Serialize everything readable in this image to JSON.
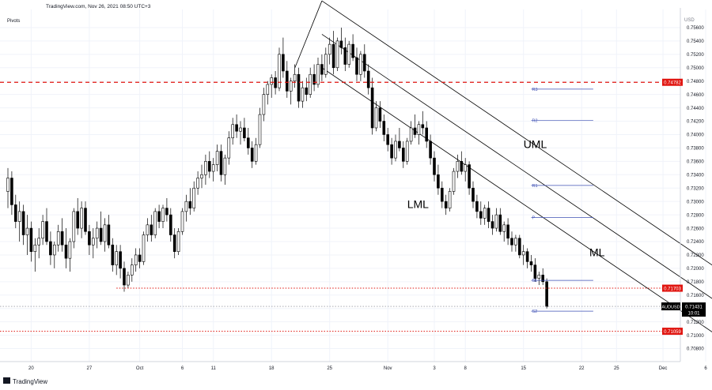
{
  "header": {
    "source_line": "TradingView.com, Nov 26, 2021 08:50 UTC+3",
    "indicator_label": "Pivots",
    "currency_label": "USD"
  },
  "footer": {
    "logo_text": "TradingView"
  },
  "colors": {
    "up_candle": "#ffffff",
    "down_candle": "#000000",
    "candle_outline": "#000000",
    "hline_red": "#e0140f",
    "pivot_line": "#3f51b5",
    "channel_line": "#000000",
    "current_price_line": "#787b86",
    "current_price_bg": "#000000",
    "price_tag_bg": "#e0140f"
  },
  "chart_data": {
    "type": "candlestick",
    "symbol": "AUDUSD",
    "ylim": [
      0.707,
      0.758
    ],
    "y_ticks": [
      "0.75600",
      "0.75400",
      "0.75200",
      "0.75000",
      "0.74800",
      "0.74600",
      "0.74400",
      "0.74200",
      "0.74000",
      "0.73800",
      "0.73600",
      "0.73400",
      "0.73200",
      "0.73000",
      "0.72800",
      "0.72600",
      "0.72400",
      "0.72200",
      "0.72000",
      "0.71800",
      "0.71600",
      "0.71400",
      "0.71200",
      "0.71000",
      "0.70800"
    ],
    "x_ticks": [
      {
        "label": "20",
        "bar": 6
      },
      {
        "label": "27",
        "bar": 21
      },
      {
        "label": "Oct",
        "bar": 34
      },
      {
        "label": "6",
        "bar": 45
      },
      {
        "label": "11",
        "bar": 53
      },
      {
        "label": "18",
        "bar": 68
      },
      {
        "label": "25",
        "bar": 83
      },
      {
        "label": "Nov",
        "bar": 98
      },
      {
        "label": "3",
        "bar": 110
      },
      {
        "label": "8",
        "bar": 118
      },
      {
        "label": "15",
        "bar": 133
      },
      {
        "label": "22",
        "bar": 148
      },
      {
        "label": "25",
        "bar": 157
      },
      {
        "label": "Dec",
        "bar": 169
      },
      {
        "label": "6",
        "bar": 180
      }
    ],
    "ohlc": [
      [
        0.7315,
        0.735,
        0.729,
        0.7335
      ],
      [
        0.7335,
        0.7345,
        0.728,
        0.7295
      ],
      [
        0.7295,
        0.731,
        0.726,
        0.727
      ],
      [
        0.727,
        0.73,
        0.724,
        0.7285
      ],
      [
        0.7285,
        0.7295,
        0.7235,
        0.725
      ],
      [
        0.725,
        0.728,
        0.722,
        0.726
      ],
      [
        0.726,
        0.727,
        0.721,
        0.7225
      ],
      [
        0.7225,
        0.7245,
        0.7195,
        0.7235
      ],
      [
        0.7235,
        0.726,
        0.7215,
        0.7245
      ],
      [
        0.7245,
        0.728,
        0.7235,
        0.727
      ],
      [
        0.727,
        0.729,
        0.7235,
        0.724
      ],
      [
        0.724,
        0.7255,
        0.7205,
        0.722
      ],
      [
        0.722,
        0.724,
        0.72,
        0.7235
      ],
      [
        0.7235,
        0.7265,
        0.7225,
        0.7255
      ],
      [
        0.7255,
        0.7275,
        0.7225,
        0.7235
      ],
      [
        0.7235,
        0.726,
        0.72,
        0.7215
      ],
      [
        0.7215,
        0.7245,
        0.7195,
        0.724
      ],
      [
        0.724,
        0.729,
        0.723,
        0.7285
      ],
      [
        0.7285,
        0.7305,
        0.725,
        0.726
      ],
      [
        0.726,
        0.73,
        0.7245,
        0.729
      ],
      [
        0.729,
        0.73,
        0.725,
        0.7255
      ],
      [
        0.7255,
        0.7265,
        0.722,
        0.7235
      ],
      [
        0.7235,
        0.726,
        0.7215,
        0.7245
      ],
      [
        0.7245,
        0.727,
        0.723,
        0.726
      ],
      [
        0.726,
        0.7285,
        0.7235,
        0.724
      ],
      [
        0.724,
        0.7275,
        0.7225,
        0.7265
      ],
      [
        0.7265,
        0.728,
        0.723,
        0.7235
      ],
      [
        0.7235,
        0.7245,
        0.7195,
        0.7205
      ],
      [
        0.7205,
        0.7235,
        0.719,
        0.7225
      ],
      [
        0.7225,
        0.7235,
        0.7185,
        0.72
      ],
      [
        0.72,
        0.721,
        0.7165,
        0.7175
      ],
      [
        0.7175,
        0.7195,
        0.717,
        0.719
      ],
      [
        0.719,
        0.7215,
        0.718,
        0.7205
      ],
      [
        0.7205,
        0.723,
        0.7195,
        0.722
      ],
      [
        0.722,
        0.723,
        0.72,
        0.721
      ],
      [
        0.721,
        0.7255,
        0.7205,
        0.725
      ],
      [
        0.725,
        0.7275,
        0.724,
        0.7265
      ],
      [
        0.7265,
        0.728,
        0.724,
        0.725
      ],
      [
        0.725,
        0.729,
        0.7245,
        0.7285
      ],
      [
        0.7285,
        0.7295,
        0.726,
        0.727
      ],
      [
        0.727,
        0.7295,
        0.726,
        0.729
      ],
      [
        0.729,
        0.7305,
        0.727,
        0.728
      ],
      [
        0.728,
        0.729,
        0.724,
        0.725
      ],
      [
        0.725,
        0.726,
        0.7215,
        0.7225
      ],
      [
        0.7225,
        0.726,
        0.722,
        0.7255
      ],
      [
        0.7255,
        0.729,
        0.725,
        0.7285
      ],
      [
        0.7285,
        0.731,
        0.727,
        0.73
      ],
      [
        0.73,
        0.732,
        0.728,
        0.729
      ],
      [
        0.729,
        0.733,
        0.7285,
        0.732
      ],
      [
        0.732,
        0.7345,
        0.731,
        0.7335
      ],
      [
        0.7335,
        0.7355,
        0.732,
        0.734
      ],
      [
        0.734,
        0.737,
        0.7325,
        0.736
      ],
      [
        0.736,
        0.7375,
        0.7335,
        0.7345
      ],
      [
        0.7345,
        0.7365,
        0.733,
        0.7355
      ],
      [
        0.7355,
        0.7385,
        0.7345,
        0.7375
      ],
      [
        0.7375,
        0.7385,
        0.733,
        0.734
      ],
      [
        0.734,
        0.737,
        0.7325,
        0.7365
      ],
      [
        0.7365,
        0.7405,
        0.7355,
        0.7395
      ],
      [
        0.7395,
        0.7425,
        0.7385,
        0.7415
      ],
      [
        0.7415,
        0.743,
        0.7395,
        0.7405
      ],
      [
        0.7405,
        0.742,
        0.7385,
        0.741
      ],
      [
        0.741,
        0.7425,
        0.739,
        0.7395
      ],
      [
        0.7395,
        0.741,
        0.737,
        0.738
      ],
      [
        0.738,
        0.739,
        0.735,
        0.736
      ],
      [
        0.736,
        0.7395,
        0.7355,
        0.7385
      ],
      [
        0.7385,
        0.744,
        0.738,
        0.743
      ],
      [
        0.743,
        0.747,
        0.742,
        0.746
      ],
      [
        0.746,
        0.748,
        0.7445,
        0.7475
      ],
      [
        0.7475,
        0.749,
        0.7455,
        0.7485
      ],
      [
        0.7485,
        0.7495,
        0.746,
        0.747
      ],
      [
        0.747,
        0.753,
        0.7465,
        0.752
      ],
      [
        0.752,
        0.7545,
        0.7485,
        0.7495
      ],
      [
        0.7495,
        0.751,
        0.7455,
        0.7465
      ],
      [
        0.7465,
        0.7485,
        0.7445,
        0.748
      ],
      [
        0.748,
        0.7505,
        0.747,
        0.749
      ],
      [
        0.749,
        0.75,
        0.744,
        0.745
      ],
      [
        0.745,
        0.748,
        0.744,
        0.747
      ],
      [
        0.747,
        0.7485,
        0.745,
        0.746
      ],
      [
        0.746,
        0.75,
        0.7455,
        0.749
      ],
      [
        0.749,
        0.7505,
        0.7465,
        0.7475
      ],
      [
        0.7475,
        0.7515,
        0.747,
        0.7505
      ],
      [
        0.7505,
        0.752,
        0.748,
        0.749
      ],
      [
        0.749,
        0.753,
        0.7485,
        0.752
      ],
      [
        0.752,
        0.7545,
        0.7505,
        0.7535
      ],
      [
        0.7535,
        0.7555,
        0.749,
        0.75
      ],
      [
        0.75,
        0.7545,
        0.7495,
        0.754
      ],
      [
        0.754,
        0.756,
        0.752,
        0.753
      ],
      [
        0.753,
        0.7545,
        0.7495,
        0.7505
      ],
      [
        0.7505,
        0.754,
        0.75,
        0.7535
      ],
      [
        0.7535,
        0.755,
        0.751,
        0.7515
      ],
      [
        0.7515,
        0.753,
        0.748,
        0.749
      ],
      [
        0.749,
        0.7525,
        0.748,
        0.752
      ],
      [
        0.752,
        0.7535,
        0.7485,
        0.7495
      ],
      [
        0.7495,
        0.7505,
        0.746,
        0.747
      ],
      [
        0.747,
        0.7485,
        0.74,
        0.741
      ],
      [
        0.741,
        0.745,
        0.7405,
        0.744
      ],
      [
        0.744,
        0.745,
        0.741,
        0.742
      ],
      [
        0.742,
        0.743,
        0.739,
        0.74
      ],
      [
        0.74,
        0.741,
        0.7375,
        0.7385
      ],
      [
        0.7385,
        0.7395,
        0.7355,
        0.7365
      ],
      [
        0.7365,
        0.74,
        0.736,
        0.739
      ],
      [
        0.739,
        0.741,
        0.7375,
        0.738
      ],
      [
        0.738,
        0.739,
        0.735,
        0.736
      ],
      [
        0.736,
        0.7395,
        0.7355,
        0.739
      ],
      [
        0.739,
        0.742,
        0.7385,
        0.741
      ],
      [
        0.741,
        0.743,
        0.7395,
        0.74
      ],
      [
        0.74,
        0.742,
        0.7385,
        0.7415
      ],
      [
        0.7415,
        0.7435,
        0.74,
        0.741
      ],
      [
        0.741,
        0.742,
        0.738,
        0.739
      ],
      [
        0.739,
        0.74,
        0.7355,
        0.7365
      ],
      [
        0.7365,
        0.7375,
        0.733,
        0.734
      ],
      [
        0.734,
        0.7355,
        0.731,
        0.732
      ],
      [
        0.732,
        0.733,
        0.729,
        0.73
      ],
      [
        0.73,
        0.731,
        0.728,
        0.729
      ],
      [
        0.729,
        0.732,
        0.7285,
        0.7315
      ],
      [
        0.7315,
        0.735,
        0.731,
        0.7345
      ],
      [
        0.7345,
        0.737,
        0.7335,
        0.736
      ],
      [
        0.736,
        0.7375,
        0.734,
        0.7345
      ],
      [
        0.7345,
        0.7365,
        0.733,
        0.7355
      ],
      [
        0.7355,
        0.736,
        0.731,
        0.732
      ],
      [
        0.732,
        0.733,
        0.729,
        0.73
      ],
      [
        0.73,
        0.731,
        0.7275,
        0.7285
      ],
      [
        0.7285,
        0.73,
        0.7265,
        0.7275
      ],
      [
        0.7275,
        0.7295,
        0.7265,
        0.729
      ],
      [
        0.729,
        0.73,
        0.726,
        0.727
      ],
      [
        0.727,
        0.728,
        0.725,
        0.726
      ],
      [
        0.726,
        0.729,
        0.7255,
        0.728
      ],
      [
        0.728,
        0.729,
        0.725,
        0.7255
      ],
      [
        0.7255,
        0.727,
        0.724,
        0.7265
      ],
      [
        0.7265,
        0.7275,
        0.7235,
        0.7245
      ],
      [
        0.7245,
        0.7255,
        0.7225,
        0.7235
      ],
      [
        0.7235,
        0.725,
        0.7225,
        0.7245
      ],
      [
        0.7245,
        0.725,
        0.7215,
        0.722
      ],
      [
        0.722,
        0.7235,
        0.7205,
        0.7225
      ],
      [
        0.7225,
        0.723,
        0.72,
        0.721
      ],
      [
        0.721,
        0.722,
        0.7195,
        0.7205
      ],
      [
        0.7205,
        0.7215,
        0.718,
        0.7185
      ],
      [
        0.7185,
        0.7195,
        0.7175,
        0.719
      ],
      [
        0.719,
        0.72,
        0.7175,
        0.718
      ],
      [
        0.718,
        0.7185,
        0.714,
        0.7143
      ]
    ],
    "horizontal_lines": [
      {
        "value": 0.74782,
        "label": "0.74782",
        "style": "dashed"
      },
      {
        "value": 0.71703,
        "label": "0.71703",
        "style": "dotted"
      },
      {
        "value": 0.71059,
        "label": "0.71059",
        "style": "dotted"
      }
    ],
    "current_price": {
      "symbol": "AUDUSD",
      "value": 0.71431,
      "label": "0.71431",
      "countdown": "10:01"
    },
    "pivots": [
      {
        "name": "R3",
        "value": 0.7468
      },
      {
        "name": "R2",
        "value": 0.7421
      },
      {
        "name": "R1",
        "value": 0.7324
      },
      {
        "name": "P",
        "value": 0.7276
      },
      {
        "name": "S1",
        "value": 0.7182
      },
      {
        "name": "S2",
        "value": 0.7136
      }
    ],
    "channel": {
      "labels": [
        "UML",
        "ML",
        "LML"
      ],
      "ml": {
        "x1_bar": 81,
        "y1": 0.755,
        "x2_bar": 188,
        "y2": 0.713
      },
      "uml_offset": 0.005,
      "lml_offset": -0.005
    }
  }
}
